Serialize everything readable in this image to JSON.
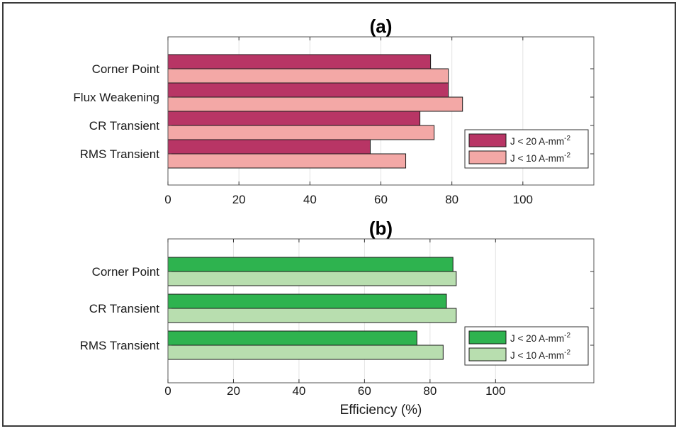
{
  "chart_data": [
    {
      "type": "bar",
      "orientation": "horizontal",
      "title": "(a)",
      "xlabel": "",
      "categories": [
        "Corner Point",
        "Flux Weakening",
        "CR Transient",
        "RMS Transient"
      ],
      "series": [
        {
          "name": "J < 20 A-mm",
          "sup": "-2",
          "color": "#b83565",
          "values": [
            74,
            79,
            71,
            57
          ]
        },
        {
          "name": "J < 10 A-mm",
          "sup": "-2",
          "color": "#f3a8a6",
          "values": [
            79,
            83,
            75,
            67
          ]
        }
      ],
      "xlim": [
        0,
        120
      ],
      "xticks": [
        0,
        20,
        40,
        60,
        80,
        100
      ],
      "grid": "vertical",
      "legend": "bottom-right"
    },
    {
      "type": "bar",
      "orientation": "horizontal",
      "title": "(b)",
      "xlabel": "Efficiency (%)",
      "categories": [
        "Corner Point",
        "CR Transient",
        "RMS Transient"
      ],
      "series": [
        {
          "name": "J < 20 A-mm",
          "sup": "-2",
          "color": "#2eb34f",
          "values": [
            87,
            85,
            76
          ]
        },
        {
          "name": "J < 10 A-mm",
          "sup": "-2",
          "color": "#b8deaf",
          "values": [
            88,
            88,
            84
          ]
        }
      ],
      "xlim": [
        0,
        130
      ],
      "xticks": [
        0,
        20,
        40,
        60,
        80,
        100
      ],
      "grid": "vertical",
      "legend": "bottom-right"
    }
  ]
}
